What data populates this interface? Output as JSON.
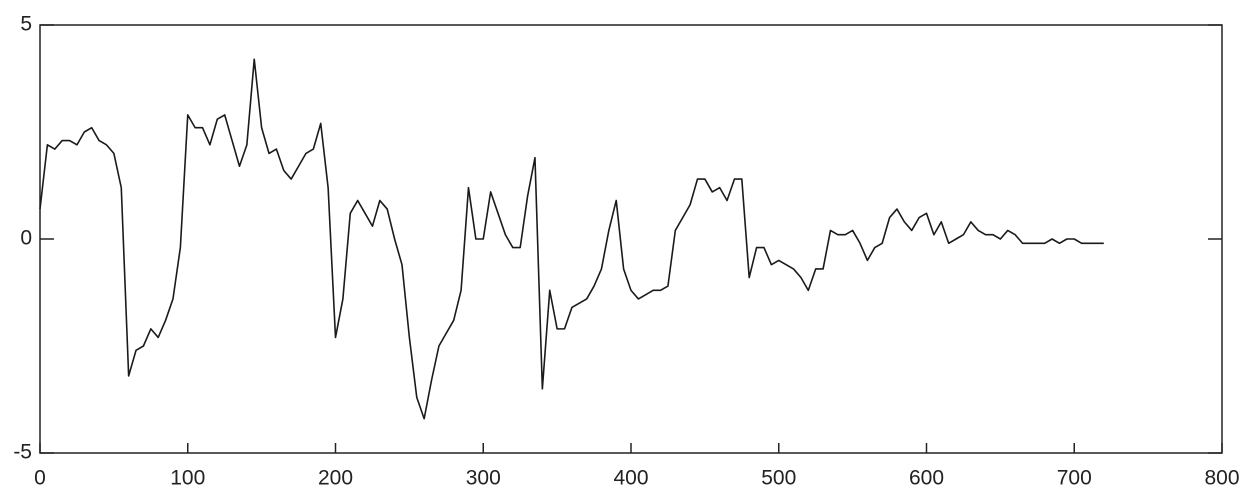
{
  "chart_data": {
    "type": "line",
    "x": [
      0,
      5,
      10,
      15,
      20,
      25,
      30,
      35,
      40,
      45,
      50,
      55,
      60,
      65,
      70,
      75,
      80,
      85,
      90,
      95,
      100,
      105,
      110,
      115,
      120,
      125,
      130,
      135,
      140,
      145,
      150,
      155,
      160,
      165,
      170,
      175,
      180,
      185,
      190,
      195,
      200,
      205,
      210,
      215,
      220,
      225,
      230,
      235,
      240,
      245,
      250,
      255,
      260,
      265,
      270,
      275,
      280,
      285,
      290,
      295,
      300,
      305,
      310,
      315,
      320,
      325,
      330,
      335,
      340,
      345,
      350,
      355,
      360,
      365,
      370,
      375,
      380,
      385,
      390,
      395,
      400,
      405,
      410,
      415,
      420,
      425,
      430,
      435,
      440,
      445,
      450,
      455,
      460,
      465,
      470,
      475,
      480,
      485,
      490,
      495,
      500,
      505,
      510,
      515,
      520,
      525,
      530,
      535,
      540,
      545,
      550,
      555,
      560,
      565,
      570,
      575,
      580,
      585,
      590,
      595,
      600,
      605,
      610,
      615,
      620,
      625,
      630,
      635,
      640,
      645,
      650,
      655,
      660,
      665,
      670,
      675,
      680,
      685,
      690,
      695,
      700,
      705,
      710,
      715,
      720
    ],
    "series": [
      {
        "color": "#1a1a1a",
        "values": [
          0.7,
          2.2,
          2.1,
          2.3,
          2.3,
          2.2,
          2.5,
          2.6,
          2.3,
          2.2,
          2.0,
          1.2,
          -3.2,
          -2.6,
          -2.5,
          -2.1,
          -2.3,
          -1.9,
          -1.4,
          -0.2,
          2.9,
          2.6,
          2.6,
          2.2,
          2.8,
          2.9,
          2.3,
          1.7,
          2.2,
          4.2,
          2.6,
          2.0,
          2.1,
          1.6,
          1.4,
          1.7,
          2.0,
          2.1,
          2.7,
          1.2,
          -2.3,
          -1.4,
          0.6,
          0.9,
          0.6,
          0.3,
          0.9,
          0.7,
          0,
          -0.6,
          -2.3,
          -3.7,
          -4.2,
          -3.3,
          -2.5,
          -2.2,
          -1.9,
          -1.2,
          1.2,
          0,
          0,
          1.1,
          0.6,
          0.1,
          -0.2,
          -0.2,
          1.0,
          1.9,
          -3.5,
          -1.2,
          -2.1,
          -2.1,
          -1.6,
          -1.5,
          -1.4,
          -1.1,
          -0.7,
          0.2,
          0.9,
          -0.7,
          -1.2,
          -1.4,
          -1.3,
          -1.2,
          -1.2,
          -1.1,
          0.2,
          0.5,
          0.8,
          1.4,
          1.4,
          1.1,
          1.2,
          0.9,
          1.4,
          1.4,
          -0.9,
          -0.2,
          -0.2,
          -0.6,
          -0.5,
          -0.6,
          -0.7,
          -0.9,
          -1.2,
          -0.7,
          -0.7,
          0.2,
          0.1,
          0.1,
          0.2,
          -0.1,
          -0.5,
          -0.2,
          -0.1,
          0.5,
          0.7,
          0.4,
          0.2,
          0.5,
          0.6,
          0.1,
          0.4,
          -0.1,
          0,
          0.1,
          0.4,
          0.2,
          0.1,
          0.1,
          0,
          0.2,
          0.1,
          -0.1,
          -0.1,
          -0.1,
          -0.1,
          0,
          -0.1,
          0,
          0,
          -0.1,
          -0.1,
          -0.1,
          -0.1
        ]
      }
    ],
    "xlim": [
      0,
      800
    ],
    "xticks": [
      0,
      100,
      200,
      300,
      400,
      500,
      600,
      700,
      800
    ],
    "ylim": [
      -5,
      5
    ],
    "yticks": [
      -5,
      0,
      5
    ]
  }
}
